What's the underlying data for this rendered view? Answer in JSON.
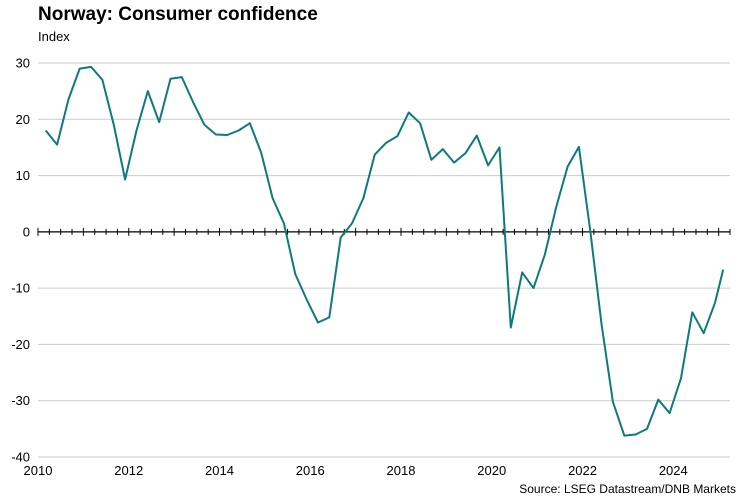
{
  "title": "Norway: Consumer confidence",
  "source": "Source: LSEG Datastream/DNB Markets",
  "colors": {
    "line": "#0f7b78",
    "grid": "#cccccc",
    "axis": "#000000"
  },
  "chart_data": {
    "type": "line",
    "title": "Norway: Consumer confidence",
    "ylabel": "Index",
    "xlabel": "",
    "xlim": [
      2010,
      2025.25
    ],
    "ylim": [
      -40,
      30
    ],
    "yticks": [
      30,
      20,
      10,
      0,
      -10,
      -20,
      -30,
      -40
    ],
    "xticks": [
      "2010",
      "2012",
      "2014",
      "2016",
      "2018",
      "2020",
      "2022",
      "2024"
    ],
    "grid": true,
    "legend": "none",
    "series": [
      {
        "x": [
          2010.17,
          2010.42,
          2010.67,
          2010.92,
          2011.17,
          2011.42,
          2011.67,
          2011.92,
          2012.17,
          2012.42,
          2012.67,
          2012.92,
          2013.17,
          2013.42,
          2013.67,
          2013.92,
          2014.17,
          2014.42,
          2014.67,
          2014.92,
          2015.17,
          2015.42,
          2015.67,
          2015.92,
          2016.17,
          2016.42,
          2016.67,
          2016.92,
          2017.17,
          2017.42,
          2017.67,
          2017.92,
          2018.17,
          2018.42,
          2018.67,
          2018.92,
          2019.17,
          2019.42,
          2019.67,
          2019.92,
          2020.17,
          2020.42,
          2020.67,
          2020.92,
          2021.17,
          2021.42,
          2021.67,
          2021.92,
          2022.17,
          2022.42,
          2022.67,
          2022.92,
          2023.17,
          2023.42,
          2023.67,
          2023.92,
          2024.17,
          2024.42,
          2024.67,
          2024.92,
          2025.1
        ],
        "values": [
          18,
          15.5,
          23.5,
          29,
          29.3,
          27,
          19,
          9.3,
          18,
          25,
          19.5,
          27.2,
          27.5,
          23,
          19,
          17.3,
          17.2,
          18,
          19.3,
          14,
          6,
          1.5,
          -7.5,
          -12,
          -16.1,
          -15.2,
          -1,
          1.5,
          6,
          13.7,
          15.8,
          17,
          21.2,
          19.3,
          12.8,
          14.7,
          12.3,
          14,
          17.1,
          11.8,
          15,
          -17,
          -7.2,
          -10,
          -4,
          4.4,
          11.6,
          15.1,
          0.3,
          -16.5,
          -30.2,
          -36.2,
          -36,
          -35,
          -29.8,
          -32.2,
          -26,
          -14.3,
          -18,
          -12.6,
          -6.7
        ]
      }
    ]
  }
}
